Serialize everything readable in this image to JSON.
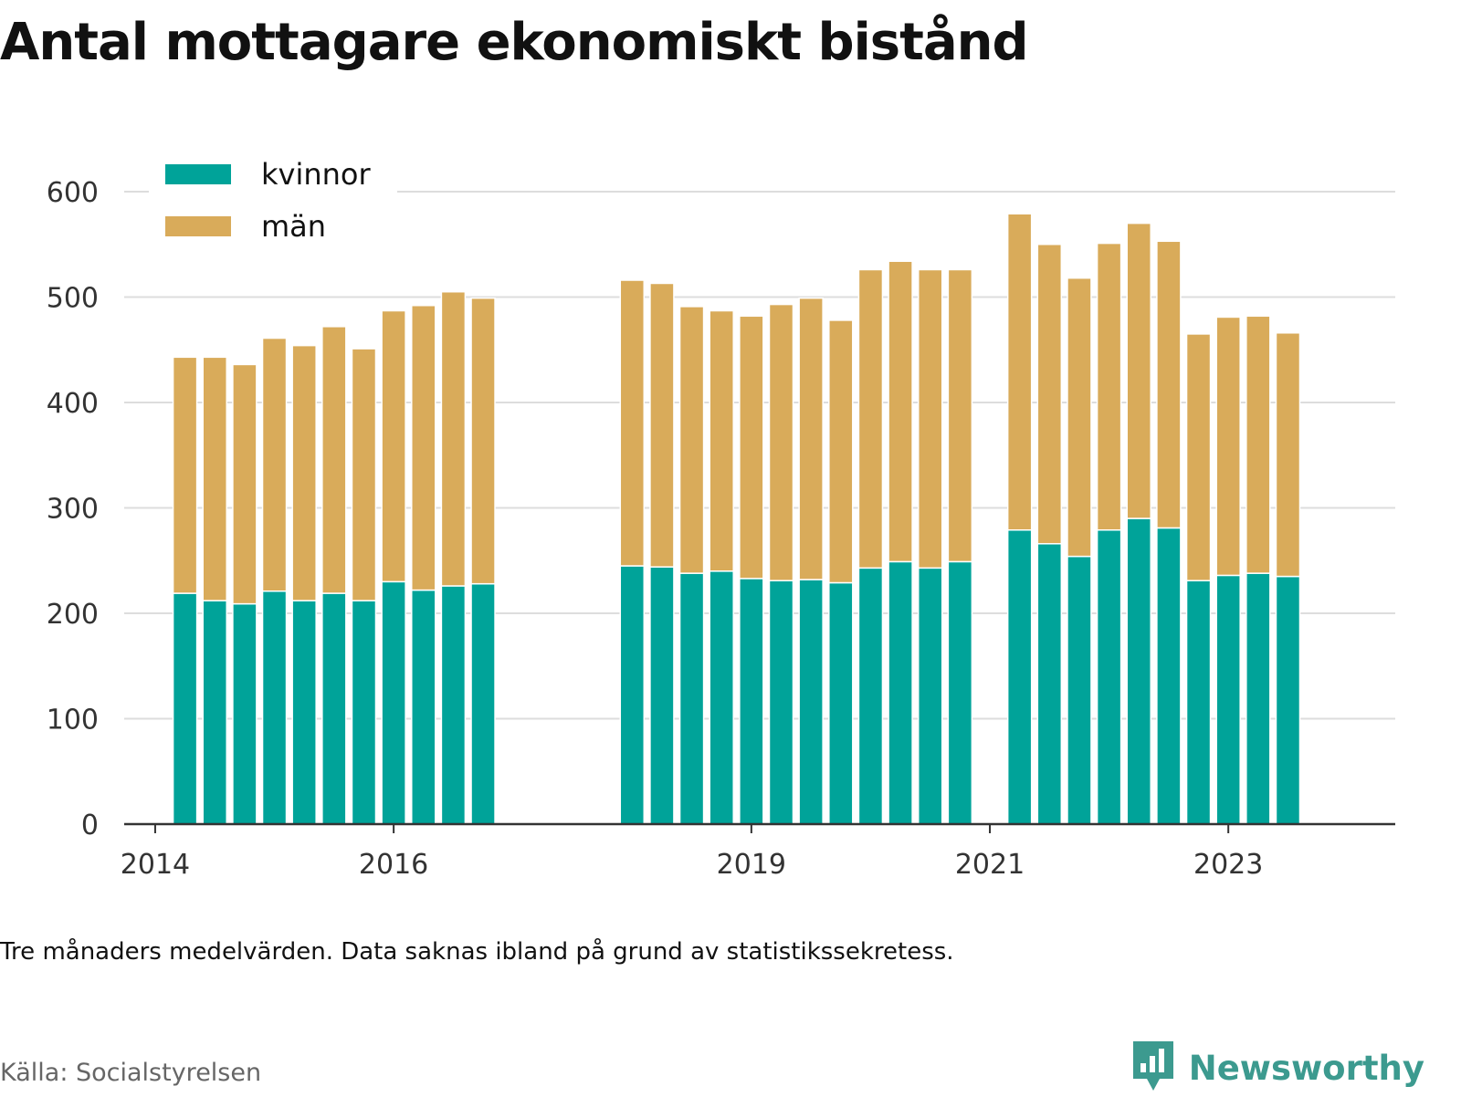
{
  "title": "Antal mottagare ekonomiskt bistånd",
  "footnote": "Tre månaders medelvärden. Data saknas ibland på grund av statistikssekretess.",
  "source": "Källa: Socialstyrelsen",
  "brand": {
    "name": "Newsworthy",
    "icon": "newsworthy-logo-icon",
    "color": "#3c9a8f"
  },
  "chart_data": {
    "type": "bar",
    "stacked": true,
    "title": "Antal mottagare ekonomiskt bistånd",
    "ylim": [
      0,
      600
    ],
    "yticks": [
      0,
      100,
      200,
      300,
      400,
      500,
      600
    ],
    "xticks": [
      2014,
      2016,
      2019,
      2021,
      2023
    ],
    "grid": true,
    "legend_position": "top-left",
    "colors": {
      "kvinnor": "#00a399",
      "män": "#d9ab5a"
    },
    "x": [
      2014.25,
      2014.5,
      2014.75,
      2015.0,
      2015.25,
      2015.5,
      2015.75,
      2016.0,
      2016.25,
      2016.5,
      2016.75,
      2018.0,
      2018.25,
      2018.5,
      2018.75,
      2019.0,
      2019.25,
      2019.5,
      2019.75,
      2020.0,
      2020.25,
      2020.5,
      2020.75,
      2021.25,
      2021.5,
      2021.75,
      2022.0,
      2022.25,
      2022.5,
      2022.75,
      2023.0,
      2023.25,
      2023.5
    ],
    "series": [
      {
        "name": "kvinnor",
        "values": [
          219,
          212,
          209,
          221,
          212,
          219,
          212,
          230,
          222,
          226,
          228,
          245,
          244,
          238,
          240,
          233,
          231,
          232,
          229,
          243,
          249,
          243,
          249,
          279,
          266,
          254,
          279,
          290,
          281,
          231,
          236,
          238,
          235
        ]
      },
      {
        "name": "män",
        "values": [
          224,
          231,
          227,
          240,
          242,
          253,
          239,
          257,
          270,
          279,
          271,
          271,
          269,
          253,
          247,
          249,
          262,
          267,
          249,
          283,
          285,
          283,
          277,
          300,
          284,
          264,
          272,
          280,
          272,
          234,
          245,
          244,
          231
        ]
      }
    ]
  }
}
